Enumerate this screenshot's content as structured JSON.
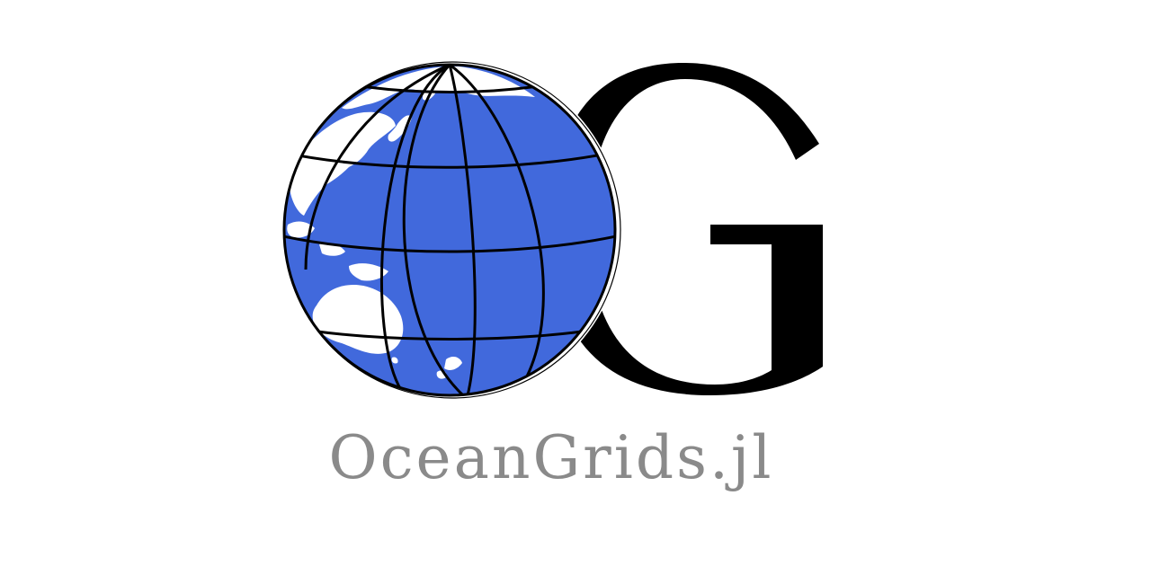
{
  "logo": {
    "monogram_letter": "G",
    "wordmark": "OceanGrids.jl"
  },
  "colors": {
    "background": "#ffffff",
    "ocean": "#4169dc",
    "land": "#ffffff",
    "gridlines": "#000000",
    "monogram": "#000000",
    "wordmark": "#8a8a8a"
  },
  "icons": {
    "globe": "globe-icon",
    "monogram": "letter-g-monogram"
  }
}
